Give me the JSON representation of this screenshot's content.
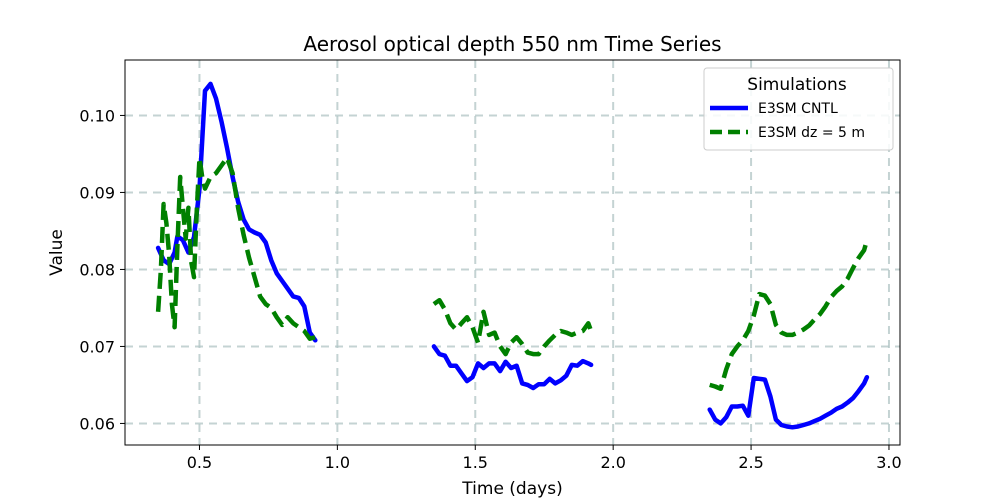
{
  "chart_data": {
    "type": "line",
    "title": "Aerosol optical depth 550 nm Time Series",
    "xlabel": "Time (days)",
    "ylabel": "Value",
    "xlim": [
      0.23,
      3.04
    ],
    "ylim": [
      0.0572,
      0.1072
    ],
    "xticks": [
      0.5,
      1.0,
      1.5,
      2.0,
      2.5,
      3.0
    ],
    "xtick_labels": [
      "0.5",
      "1.0",
      "1.5",
      "2.0",
      "2.5",
      "3.0"
    ],
    "yticks": [
      0.06,
      0.07,
      0.08,
      0.09,
      0.1
    ],
    "ytick_labels": [
      "0.06",
      "0.07",
      "0.08",
      "0.09",
      "0.10"
    ],
    "grid": true,
    "legend": {
      "title": "Simulations",
      "placement": "top-right"
    },
    "series": [
      {
        "name": "E3SM CNTL",
        "color": "#0000ff",
        "style": "solid",
        "segments": [
          [
            [
              0.35,
              0.0828
            ],
            [
              0.37,
              0.0812
            ],
            [
              0.39,
              0.0807
            ],
            [
              0.41,
              0.0822
            ],
            [
              0.42,
              0.0843
            ],
            [
              0.44,
              0.0838
            ],
            [
              0.46,
              0.0822
            ],
            [
              0.48,
              0.0842
            ],
            [
              0.5,
              0.0905
            ],
            [
              0.52,
              0.1032
            ],
            [
              0.54,
              0.1041
            ],
            [
              0.56,
              0.1022
            ],
            [
              0.58,
              0.0992
            ],
            [
              0.6,
              0.0958
            ],
            [
              0.62,
              0.092
            ],
            [
              0.64,
              0.0888
            ],
            [
              0.66,
              0.0865
            ],
            [
              0.68,
              0.0852
            ],
            [
              0.7,
              0.0848
            ],
            [
              0.72,
              0.0845
            ],
            [
              0.74,
              0.0835
            ],
            [
              0.76,
              0.0812
            ],
            [
              0.78,
              0.0795
            ],
            [
              0.8,
              0.0785
            ],
            [
              0.82,
              0.0775
            ],
            [
              0.84,
              0.0765
            ],
            [
              0.86,
              0.0763
            ],
            [
              0.88,
              0.0752
            ],
            [
              0.9,
              0.0718
            ],
            [
              0.92,
              0.0708
            ]
          ],
          [
            [
              1.35,
              0.07
            ],
            [
              1.37,
              0.069
            ],
            [
              1.39,
              0.0688
            ],
            [
              1.41,
              0.0675
            ],
            [
              1.43,
              0.0675
            ],
            [
              1.45,
              0.0665
            ],
            [
              1.47,
              0.0655
            ],
            [
              1.49,
              0.066
            ],
            [
              1.51,
              0.0678
            ],
            [
              1.53,
              0.0672
            ],
            [
              1.55,
              0.0678
            ],
            [
              1.57,
              0.0678
            ],
            [
              1.59,
              0.0668
            ],
            [
              1.61,
              0.068
            ],
            [
              1.63,
              0.0672
            ],
            [
              1.65,
              0.0675
            ],
            [
              1.67,
              0.0652
            ],
            [
              1.69,
              0.065
            ],
            [
              1.71,
              0.0646
            ],
            [
              1.73,
              0.0651
            ],
            [
              1.75,
              0.0651
            ],
            [
              1.77,
              0.0658
            ],
            [
              1.79,
              0.0652
            ],
            [
              1.81,
              0.0656
            ],
            [
              1.83,
              0.0662
            ],
            [
              1.85,
              0.0676
            ],
            [
              1.87,
              0.0675
            ],
            [
              1.89,
              0.0681
            ],
            [
              1.91,
              0.0678
            ],
            [
              1.92,
              0.0676
            ]
          ],
          [
            [
              2.35,
              0.0618
            ],
            [
              2.37,
              0.0605
            ],
            [
              2.39,
              0.06
            ],
            [
              2.41,
              0.0608
            ],
            [
              2.43,
              0.0622
            ],
            [
              2.45,
              0.0622
            ],
            [
              2.47,
              0.0623
            ],
            [
              2.49,
              0.061
            ],
            [
              2.51,
              0.0659
            ],
            [
              2.53,
              0.0658
            ],
            [
              2.55,
              0.0657
            ],
            [
              2.57,
              0.0635
            ],
            [
              2.59,
              0.0605
            ],
            [
              2.61,
              0.0598
            ],
            [
              2.63,
              0.0596
            ],
            [
              2.65,
              0.0595
            ],
            [
              2.67,
              0.0596
            ],
            [
              2.69,
              0.0598
            ],
            [
              2.71,
              0.06
            ],
            [
              2.73,
              0.0603
            ],
            [
              2.75,
              0.0606
            ],
            [
              2.77,
              0.061
            ],
            [
              2.79,
              0.0614
            ],
            [
              2.81,
              0.0619
            ],
            [
              2.83,
              0.0622
            ],
            [
              2.85,
              0.0627
            ],
            [
              2.87,
              0.0633
            ],
            [
              2.89,
              0.0642
            ],
            [
              2.91,
              0.0652
            ],
            [
              2.92,
              0.066
            ]
          ]
        ]
      },
      {
        "name": "E3SM dz = 5 m",
        "color": "#008000",
        "style": "dashed",
        "segments": [
          [
            [
              0.35,
              0.0745
            ],
            [
              0.36,
              0.08
            ],
            [
              0.37,
              0.0885
            ],
            [
              0.38,
              0.086
            ],
            [
              0.39,
              0.082
            ],
            [
              0.4,
              0.0755
            ],
            [
              0.41,
              0.0725
            ],
            [
              0.42,
              0.083
            ],
            [
              0.43,
              0.092
            ],
            [
              0.44,
              0.088
            ],
            [
              0.45,
              0.084
            ],
            [
              0.46,
              0.088
            ],
            [
              0.47,
              0.081
            ],
            [
              0.48,
              0.079
            ],
            [
              0.49,
              0.0875
            ],
            [
              0.5,
              0.0945
            ],
            [
              0.51,
              0.092
            ],
            [
              0.52,
              0.0905
            ],
            [
              0.54,
              0.092
            ],
            [
              0.56,
              0.0925
            ],
            [
              0.58,
              0.0935
            ],
            [
              0.6,
              0.0945
            ],
            [
              0.62,
              0.0925
            ],
            [
              0.64,
              0.088
            ],
            [
              0.66,
              0.0845
            ],
            [
              0.68,
              0.0815
            ],
            [
              0.7,
              0.079
            ],
            [
              0.72,
              0.0765
            ],
            [
              0.74,
              0.0755
            ],
            [
              0.76,
              0.075
            ],
            [
              0.78,
              0.0738
            ],
            [
              0.8,
              0.0728
            ],
            [
              0.82,
              0.0738
            ],
            [
              0.84,
              0.073
            ],
            [
              0.86,
              0.0725
            ],
            [
              0.88,
              0.072
            ],
            [
              0.9,
              0.071
            ],
            [
              0.92,
              0.0712
            ]
          ],
          [
            [
              1.35,
              0.0755
            ],
            [
              1.37,
              0.076
            ],
            [
              1.39,
              0.0748
            ],
            [
              1.41,
              0.073
            ],
            [
              1.43,
              0.0722
            ],
            [
              1.45,
              0.073
            ],
            [
              1.47,
              0.0738
            ],
            [
              1.49,
              0.0725
            ],
            [
              1.51,
              0.0705
            ],
            [
              1.53,
              0.0745
            ],
            [
              1.55,
              0.0715
            ],
            [
              1.57,
              0.0718
            ],
            [
              1.59,
              0.07
            ],
            [
              1.61,
              0.069
            ],
            [
              1.63,
              0.0705
            ],
            [
              1.65,
              0.0712
            ],
            [
              1.67,
              0.0703
            ],
            [
              1.69,
              0.0692
            ],
            [
              1.71,
              0.069
            ],
            [
              1.73,
              0.069
            ],
            [
              1.75,
              0.07
            ],
            [
              1.77,
              0.0708
            ],
            [
              1.79,
              0.0715
            ],
            [
              1.81,
              0.072
            ],
            [
              1.83,
              0.0718
            ],
            [
              1.85,
              0.0715
            ],
            [
              1.87,
              0.0718
            ],
            [
              1.89,
              0.072
            ],
            [
              1.91,
              0.073
            ],
            [
              1.92,
              0.072
            ]
          ],
          [
            [
              2.35,
              0.065
            ],
            [
              2.37,
              0.0648
            ],
            [
              2.39,
              0.0645
            ],
            [
              2.41,
              0.067
            ],
            [
              2.43,
              0.069
            ],
            [
              2.45,
              0.07
            ],
            [
              2.47,
              0.0708
            ],
            [
              2.49,
              0.072
            ],
            [
              2.51,
              0.074
            ],
            [
              2.53,
              0.0768
            ],
            [
              2.55,
              0.0766
            ],
            [
              2.57,
              0.0755
            ],
            [
              2.59,
              0.0728
            ],
            [
              2.61,
              0.0718
            ],
            [
              2.63,
              0.0715
            ],
            [
              2.65,
              0.0715
            ],
            [
              2.67,
              0.0718
            ],
            [
              2.69,
              0.0722
            ],
            [
              2.71,
              0.0727
            ],
            [
              2.73,
              0.0735
            ],
            [
              2.75,
              0.0742
            ],
            [
              2.77,
              0.0752
            ],
            [
              2.79,
              0.0764
            ],
            [
              2.81,
              0.0772
            ],
            [
              2.83,
              0.0778
            ],
            [
              2.85,
              0.0788
            ],
            [
              2.87,
              0.0802
            ],
            [
              2.89,
              0.0815
            ],
            [
              2.91,
              0.0825
            ],
            [
              2.92,
              0.0838
            ]
          ]
        ]
      }
    ]
  }
}
